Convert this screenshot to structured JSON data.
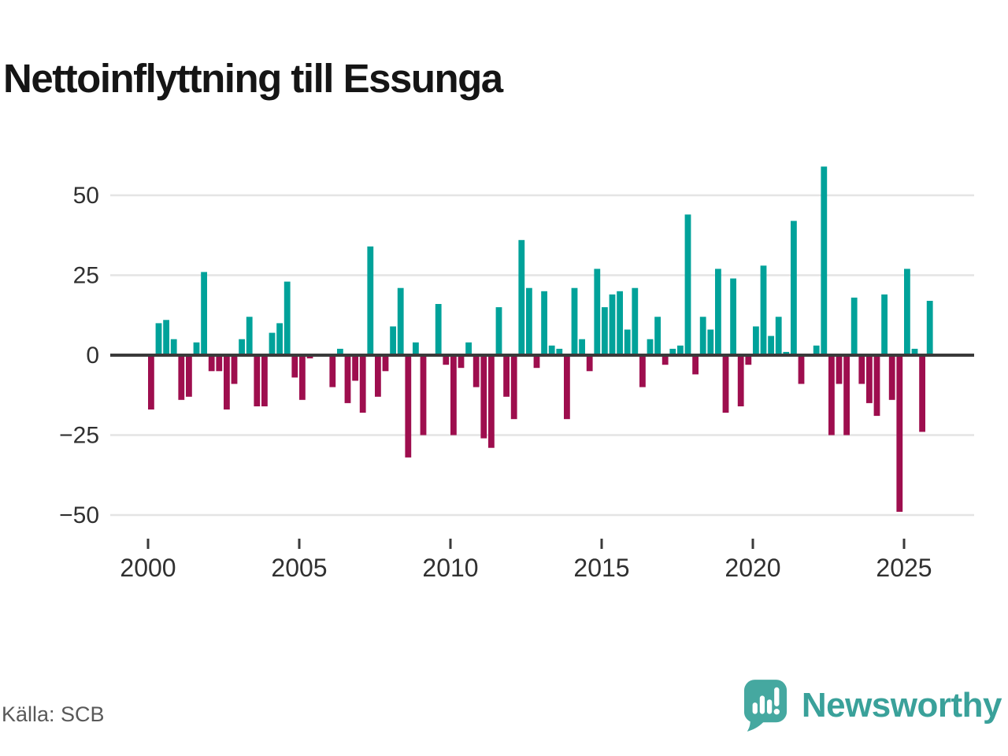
{
  "title": "Nettoinflyttning till Essunga",
  "source": "Källa: SCB",
  "logo": {
    "wordmark": "Newsworthy",
    "icon": "newsworthy-speech-bubble-chart-icon"
  },
  "colors": {
    "positive": "#00a29a",
    "negative": "#9e0e4e",
    "grid": "#e4e4e4",
    "axis": "#3a3a3a",
    "tick_label": "#303030",
    "title": "#151515",
    "source": "#595959",
    "logo_bubble": "#45a8a0",
    "logo_wordmark": "#3aa19a"
  },
  "chart_data": {
    "type": "bar",
    "title": "Nettoinflyttning till Essunga",
    "frequency": "quarterly",
    "start_year": 2000,
    "xlabel": "",
    "ylabel": "",
    "ylim": [
      -55,
      62
    ],
    "grid": "horizontal",
    "y_ticks": [
      {
        "value": 50,
        "label": "50"
      },
      {
        "value": 25,
        "label": "25"
      },
      {
        "value": 0,
        "label": "0"
      },
      {
        "value": -25,
        "label": "−25"
      },
      {
        "value": -50,
        "label": "−50"
      }
    ],
    "x_tick_labels": [
      "2000",
      "2005",
      "2010",
      "2015",
      "2020",
      "2025"
    ],
    "values_by_year": {
      "2000": [
        -17,
        10,
        11,
        5
      ],
      "2001": [
        -14,
        -13,
        4,
        26
      ],
      "2002": [
        -5,
        -5,
        -17,
        -9
      ],
      "2003": [
        5,
        12,
        -16,
        -16
      ],
      "2004": [
        7,
        10,
        23,
        -7
      ],
      "2005": [
        -14,
        -1,
        0,
        0
      ],
      "2006": [
        -10,
        2,
        -15,
        -8
      ],
      "2007": [
        -18,
        34,
        -13,
        -5
      ],
      "2008": [
        9,
        21,
        -32,
        4
      ],
      "2009": [
        -25,
        0,
        16,
        -3
      ],
      "2010": [
        -25,
        -4,
        4,
        -10
      ],
      "2011": [
        -26,
        -29,
        15,
        -13
      ],
      "2012": [
        -20,
        36,
        21,
        -4
      ],
      "2013": [
        20,
        3,
        2,
        -20
      ],
      "2014": [
        21,
        5,
        -5,
        27
      ],
      "2015": [
        15,
        19,
        20,
        8
      ],
      "2016": [
        21,
        -10,
        5,
        12
      ],
      "2017": [
        -3,
        2,
        3,
        44
      ],
      "2018": [
        -6,
        12,
        8,
        27
      ],
      "2019": [
        -18,
        24,
        -16,
        -3
      ],
      "2020": [
        9,
        28,
        6,
        12
      ],
      "2021": [
        1,
        42,
        -9,
        0
      ],
      "2022": [
        3,
        59,
        -25,
        -9
      ],
      "2023": [
        -25,
        18,
        -9,
        -15
      ],
      "2024": [
        -19,
        19,
        -14,
        -49
      ],
      "2025": [
        27,
        2,
        -24,
        17
      ]
    }
  }
}
